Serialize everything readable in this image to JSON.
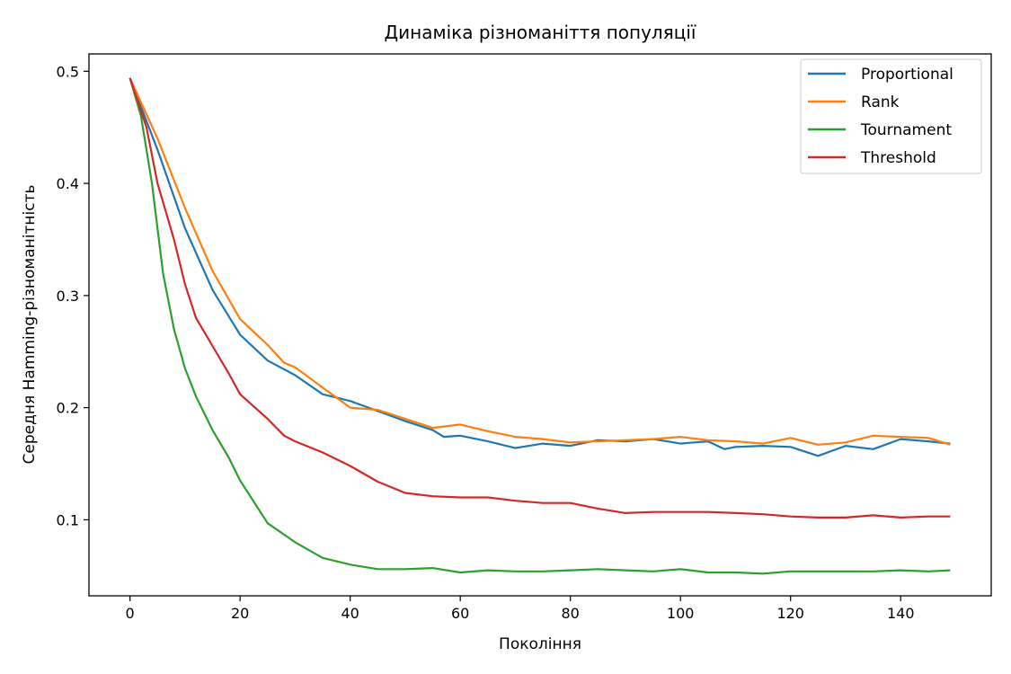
{
  "chart_data": {
    "type": "line",
    "title": "Динаміка різноманіття популяції",
    "xlabel": "Покоління",
    "ylabel": "Середня Hamming-різноманітність",
    "xlim": [
      -7.45,
      156.45
    ],
    "ylim": [
      0.0322,
      0.5155
    ],
    "xticks": [
      0,
      20,
      40,
      60,
      80,
      100,
      120,
      140
    ],
    "yticks": [
      0.1,
      0.2,
      0.3,
      0.4,
      0.5
    ],
    "grid": false,
    "legend_position": "top-right",
    "series": [
      {
        "name": "Proportional",
        "color": "#1f77b4",
        "points": [
          [
            0,
            0.494
          ],
          [
            5,
            0.43
          ],
          [
            10,
            0.36
          ],
          [
            15,
            0.305
          ],
          [
            20,
            0.265
          ],
          [
            25,
            0.242
          ],
          [
            30,
            0.229
          ],
          [
            35,
            0.212
          ],
          [
            40,
            0.206
          ],
          [
            45,
            0.197
          ],
          [
            50,
            0.188
          ],
          [
            55,
            0.18
          ],
          [
            57,
            0.174
          ],
          [
            60,
            0.175
          ],
          [
            65,
            0.17
          ],
          [
            70,
            0.164
          ],
          [
            75,
            0.168
          ],
          [
            80,
            0.166
          ],
          [
            85,
            0.171
          ],
          [
            90,
            0.17
          ],
          [
            95,
            0.172
          ],
          [
            100,
            0.168
          ],
          [
            105,
            0.17
          ],
          [
            108,
            0.163
          ],
          [
            110,
            0.165
          ],
          [
            115,
            0.166
          ],
          [
            120,
            0.165
          ],
          [
            125,
            0.157
          ],
          [
            130,
            0.166
          ],
          [
            135,
            0.163
          ],
          [
            140,
            0.172
          ],
          [
            145,
            0.17
          ],
          [
            149,
            0.168
          ]
        ]
      },
      {
        "name": "Rank",
        "color": "#ff7f0e",
        "points": [
          [
            0,
            0.494
          ],
          [
            5,
            0.44
          ],
          [
            10,
            0.378
          ],
          [
            15,
            0.322
          ],
          [
            20,
            0.279
          ],
          [
            25,
            0.256
          ],
          [
            28,
            0.24
          ],
          [
            30,
            0.236
          ],
          [
            35,
            0.218
          ],
          [
            40,
            0.2
          ],
          [
            45,
            0.198
          ],
          [
            50,
            0.19
          ],
          [
            55,
            0.182
          ],
          [
            60,
            0.185
          ],
          [
            65,
            0.179
          ],
          [
            70,
            0.174
          ],
          [
            75,
            0.172
          ],
          [
            80,
            0.169
          ],
          [
            85,
            0.17
          ],
          [
            90,
            0.171
          ],
          [
            95,
            0.172
          ],
          [
            100,
            0.174
          ],
          [
            105,
            0.171
          ],
          [
            110,
            0.17
          ],
          [
            115,
            0.168
          ],
          [
            120,
            0.173
          ],
          [
            125,
            0.167
          ],
          [
            130,
            0.169
          ],
          [
            135,
            0.175
          ],
          [
            140,
            0.174
          ],
          [
            145,
            0.173
          ],
          [
            149,
            0.167
          ]
        ]
      },
      {
        "name": "Tournament",
        "color": "#2ca02c",
        "points": [
          [
            0,
            0.494
          ],
          [
            2,
            0.46
          ],
          [
            4,
            0.4
          ],
          [
            6,
            0.32
          ],
          [
            8,
            0.27
          ],
          [
            10,
            0.235
          ],
          [
            12,
            0.21
          ],
          [
            15,
            0.18
          ],
          [
            18,
            0.155
          ],
          [
            20,
            0.135
          ],
          [
            25,
            0.097
          ],
          [
            30,
            0.08
          ],
          [
            35,
            0.066
          ],
          [
            40,
            0.06
          ],
          [
            45,
            0.056
          ],
          [
            50,
            0.056
          ],
          [
            55,
            0.057
          ],
          [
            60,
            0.053
          ],
          [
            65,
            0.055
          ],
          [
            70,
            0.054
          ],
          [
            75,
            0.054
          ],
          [
            80,
            0.055
          ],
          [
            85,
            0.056
          ],
          [
            90,
            0.055
          ],
          [
            95,
            0.054
          ],
          [
            100,
            0.056
          ],
          [
            105,
            0.053
          ],
          [
            110,
            0.053
          ],
          [
            115,
            0.052
          ],
          [
            120,
            0.054
          ],
          [
            125,
            0.054
          ],
          [
            130,
            0.054
          ],
          [
            135,
            0.054
          ],
          [
            140,
            0.055
          ],
          [
            145,
            0.054
          ],
          [
            149,
            0.055
          ]
        ]
      },
      {
        "name": "Threshold",
        "color": "#d62728",
        "points": [
          [
            0,
            0.494
          ],
          [
            3,
            0.45
          ],
          [
            5,
            0.4
          ],
          [
            8,
            0.35
          ],
          [
            10,
            0.31
          ],
          [
            12,
            0.28
          ],
          [
            15,
            0.255
          ],
          [
            18,
            0.23
          ],
          [
            20,
            0.212
          ],
          [
            25,
            0.19
          ],
          [
            28,
            0.175
          ],
          [
            30,
            0.17
          ],
          [
            35,
            0.16
          ],
          [
            40,
            0.148
          ],
          [
            45,
            0.134
          ],
          [
            50,
            0.124
          ],
          [
            55,
            0.121
          ],
          [
            60,
            0.12
          ],
          [
            65,
            0.12
          ],
          [
            70,
            0.117
          ],
          [
            75,
            0.115
          ],
          [
            80,
            0.115
          ],
          [
            85,
            0.11
          ],
          [
            90,
            0.106
          ],
          [
            95,
            0.107
          ],
          [
            100,
            0.107
          ],
          [
            105,
            0.107
          ],
          [
            110,
            0.106
          ],
          [
            115,
            0.105
          ],
          [
            120,
            0.103
          ],
          [
            125,
            0.102
          ],
          [
            130,
            0.102
          ],
          [
            135,
            0.104
          ],
          [
            140,
            0.102
          ],
          [
            145,
            0.103
          ],
          [
            149,
            0.103
          ]
        ]
      }
    ]
  }
}
